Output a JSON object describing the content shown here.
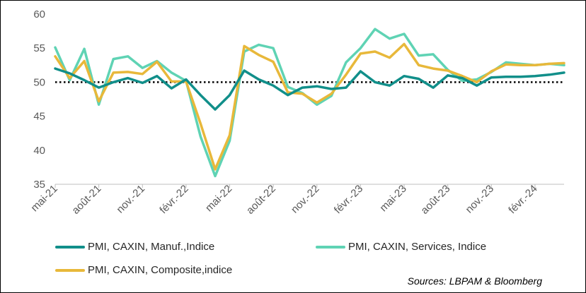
{
  "chart_data": {
    "type": "line",
    "title": "",
    "xlabel": "",
    "ylabel": "",
    "ylim": [
      35,
      60
    ],
    "yticks": [
      35,
      40,
      45,
      50,
      55,
      60
    ],
    "reference_line": 50,
    "x": [
      "mai-21",
      "juin-21",
      "juil-21",
      "août-21",
      "sept-21",
      "oct-21",
      "nov-21",
      "déc-21",
      "janv-22",
      "févr.-22",
      "mars-22",
      "avr-22",
      "mai-22",
      "juin-22",
      "juil-22",
      "août-22",
      "sept-22",
      "oct-22",
      "nov.-22",
      "déc-22",
      "janv-23",
      "févr.-23",
      "mars-23",
      "avr-23",
      "mai-23",
      "juin-23",
      "juil-23",
      "août-23",
      "sept-23",
      "oct-23",
      "nov.-23",
      "déc-23",
      "janv-24",
      "févr.-24",
      "mars-24",
      "avr-24"
    ],
    "tick_labels": [
      {
        "index": 0,
        "label": "mai-21"
      },
      {
        "index": 3,
        "label": "août-21"
      },
      {
        "index": 6,
        "label": "nov.-21"
      },
      {
        "index": 9,
        "label": "févr.-22"
      },
      {
        "index": 12,
        "label": "mai-22"
      },
      {
        "index": 15,
        "label": "août-22"
      },
      {
        "index": 18,
        "label": "nov.-22"
      },
      {
        "index": 21,
        "label": "févr.-23"
      },
      {
        "index": 24,
        "label": "mai-23"
      },
      {
        "index": 27,
        "label": "août-23"
      },
      {
        "index": 30,
        "label": "nov.-23"
      },
      {
        "index": 33,
        "label": "févr.-24"
      }
    ],
    "series": [
      {
        "name": "PMI, CAXIN, Services, Indice",
        "color": "#5fd3b4",
        "values": [
          55.1,
          50.3,
          54.9,
          46.7,
          53.4,
          53.8,
          52.1,
          53.1,
          51.4,
          50.2,
          42.0,
          36.2,
          41.4,
          54.5,
          55.5,
          55.0,
          49.3,
          48.4,
          46.7,
          48.0,
          52.9,
          55.0,
          57.8,
          56.4,
          57.1,
          53.9,
          54.1,
          51.8,
          50.2,
          50.4,
          51.5,
          52.9,
          52.7,
          52.5,
          52.7,
          52.5
        ]
      },
      {
        "name": "PMI, CAXIN, Composite,indice",
        "color": "#e8b83a",
        "values": [
          53.8,
          50.6,
          53.1,
          47.2,
          51.4,
          51.5,
          51.2,
          53.0,
          50.1,
          50.1,
          43.9,
          37.2,
          42.2,
          55.3,
          54.0,
          53.0,
          48.5,
          48.3,
          47.0,
          48.3,
          51.1,
          54.2,
          54.5,
          53.6,
          55.6,
          52.5,
          52.0,
          51.7,
          50.9,
          50.0,
          51.6,
          52.6,
          52.5,
          52.5,
          52.7,
          52.8
        ]
      },
      {
        "name": "PMI, CAXIN, Manuf.,Indice",
        "color": "#118f8a",
        "values": [
          52.0,
          51.3,
          50.3,
          49.2,
          50.0,
          50.6,
          49.9,
          50.9,
          49.1,
          50.4,
          48.1,
          46.0,
          48.1,
          51.7,
          50.4,
          49.5,
          48.1,
          49.2,
          49.4,
          49.0,
          49.2,
          51.6,
          50.0,
          49.5,
          50.9,
          50.5,
          49.2,
          51.0,
          50.6,
          49.5,
          50.7,
          50.8,
          50.8,
          50.9,
          51.1,
          51.4
        ]
      }
    ]
  },
  "legend": {
    "manuf": "PMI, CAXIN, Manuf.,Indice",
    "services": "PMI, CAXIN, Services, Indice",
    "composite": "PMI, CAXIN, Composite,indice"
  },
  "source": "Sources: LBPAM & Bloomberg"
}
